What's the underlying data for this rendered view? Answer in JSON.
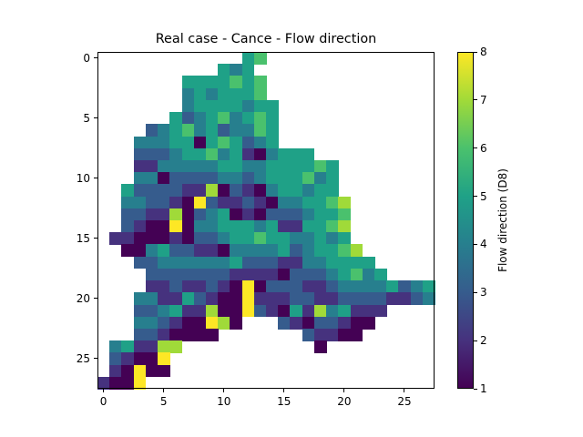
{
  "chart_data": {
    "type": "heatmap",
    "title": "Real case - Cance - Flow direction",
    "xlabel": "",
    "ylabel": "",
    "colorbar_label": "Flow direction (D8)",
    "colormap": "viridis",
    "vmin": 1,
    "vmax": 8,
    "xlim": [
      -0.5,
      27.5
    ],
    "ylim": [
      27.5,
      -0.5
    ],
    "x_ticks": [
      0,
      5,
      10,
      15,
      20,
      25
    ],
    "y_ticks": [
      0,
      5,
      10,
      15,
      20,
      25
    ],
    "colorbar_ticks": [
      1,
      2,
      3,
      4,
      5,
      6,
      7,
      8
    ],
    "grid": false,
    "rows": 28,
    "cols": 28,
    "cells_by_row": [
      {
        "row": 0,
        "start": 12,
        "values": [
          5,
          6
        ]
      },
      {
        "row": 1,
        "start": 10,
        "values": [
          5,
          4,
          5
        ]
      },
      {
        "row": 2,
        "start": 7,
        "values": [
          5,
          5,
          5,
          5,
          6,
          5,
          6
        ]
      },
      {
        "row": 3,
        "start": 7,
        "values": [
          4,
          5,
          4,
          5,
          5,
          5,
          6
        ]
      },
      {
        "row": 4,
        "start": 7,
        "values": [
          4,
          5,
          5,
          5,
          5,
          4,
          5,
          5
        ]
      },
      {
        "row": 5,
        "start": 6,
        "values": [
          5,
          3,
          4,
          5,
          6,
          4,
          5,
          6,
          5
        ]
      },
      {
        "row": 6,
        "start": 4,
        "values": [
          3,
          4,
          5,
          6,
          4,
          5,
          3,
          4,
          4,
          6,
          5
        ]
      },
      {
        "row": 7,
        "start": 3,
        "values": [
          4,
          4,
          4,
          5,
          5,
          1,
          5,
          6,
          5,
          3,
          4,
          5
        ]
      },
      {
        "row": 8,
        "start": 3,
        "values": [
          3,
          3,
          3,
          4,
          5,
          5,
          6,
          4,
          5,
          2,
          1,
          4,
          5,
          5,
          5
        ]
      },
      {
        "row": 9,
        "start": 3,
        "values": [
          2,
          2,
          4,
          4,
          4,
          4,
          4,
          5,
          5,
          4,
          4,
          5,
          5,
          5,
          5,
          6,
          5
        ]
      },
      {
        "row": 10,
        "start": 3,
        "values": [
          4,
          4,
          1,
          3,
          3,
          3,
          3,
          4,
          4,
          3,
          4,
          5,
          5,
          5,
          6,
          4,
          5
        ]
      },
      {
        "row": 11,
        "start": 2,
        "values": [
          5,
          3,
          3,
          3,
          3,
          2,
          2,
          7,
          1,
          3,
          2,
          1,
          4,
          5,
          5,
          4,
          5,
          5
        ]
      },
      {
        "row": 12,
        "start": 2,
        "values": [
          4,
          4,
          3,
          3,
          2,
          1,
          8,
          3,
          2,
          2,
          3,
          2,
          1,
          4,
          4,
          5,
          5,
          6,
          7
        ]
      },
      {
        "row": 13,
        "start": 2,
        "values": [
          3,
          3,
          2,
          2,
          7,
          1,
          3,
          4,
          5,
          1,
          2,
          1,
          3,
          3,
          3,
          4,
          5,
          5,
          6
        ]
      },
      {
        "row": 14,
        "start": 2,
        "values": [
          3,
          2,
          1,
          1,
          8,
          1,
          4,
          4,
          5,
          5,
          5,
          4,
          5,
          2,
          2,
          5,
          5,
          6,
          7
        ]
      },
      {
        "row": 15,
        "start": 1,
        "values": [
          2,
          2,
          1,
          1,
          1,
          2,
          1,
          3,
          3,
          4,
          5,
          5,
          6,
          5,
          5,
          4,
          4,
          5,
          4,
          5
        ]
      },
      {
        "row": 16,
        "start": 2,
        "values": [
          1,
          1,
          4,
          5,
          3,
          3,
          2,
          2,
          1,
          4,
          4,
          4,
          4,
          5,
          3,
          4,
          5,
          5,
          6,
          7
        ]
      },
      {
        "row": 17,
        "start": 3,
        "values": [
          3,
          3,
          4,
          4,
          4,
          4,
          4,
          4,
          5,
          3,
          3,
          3,
          2,
          2,
          4,
          4,
          5,
          5,
          5,
          5
        ]
      },
      {
        "row": 18,
        "start": 4,
        "values": [
          3,
          3,
          3,
          3,
          3,
          3,
          3,
          2,
          2,
          2,
          2,
          1,
          3,
          3,
          3,
          4,
          5,
          6,
          4,
          5
        ]
      },
      {
        "row": 19,
        "start": 4,
        "values": [
          2,
          2,
          3,
          2,
          2,
          3,
          2,
          1,
          8,
          1,
          3,
          3,
          3,
          2,
          2,
          3,
          4,
          4,
          4,
          4,
          5,
          3,
          4,
          5
        ]
      },
      {
        "row": 20,
        "start": 3,
        "values": [
          4,
          4,
          2,
          2,
          5,
          3,
          2,
          1,
          1,
          8,
          2,
          2,
          2,
          3,
          3,
          2,
          2,
          3,
          3,
          3,
          3,
          2,
          2,
          3,
          4
        ]
      },
      {
        "row": 21,
        "start": 3,
        "values": [
          3,
          3,
          4,
          5,
          2,
          2,
          7,
          1,
          1,
          8,
          3,
          2,
          1,
          5,
          2,
          7,
          4,
          5,
          2,
          2,
          2
        ]
      },
      {
        "row": 22,
        "start": 3,
        "values": [
          4,
          4,
          3,
          2,
          1,
          1,
          8,
          7,
          1,
          null,
          null,
          null,
          3,
          2,
          1,
          3,
          3,
          2,
          1,
          1
        ]
      },
      {
        "row": 23,
        "start": 3,
        "values": [
          3,
          3,
          2,
          1,
          1,
          1,
          1,
          null,
          null,
          null,
          null,
          null,
          null,
          null,
          3,
          2,
          2,
          1,
          1
        ]
      },
      {
        "row": 24,
        "start": 1,
        "values": [
          4,
          5,
          2,
          2,
          7,
          7,
          null,
          null,
          null,
          null,
          null,
          null,
          null,
          null,
          null,
          null,
          null,
          1
        ]
      },
      {
        "row": 25,
        "start": 1,
        "values": [
          3,
          2,
          1,
          1,
          8
        ]
      },
      {
        "row": 26,
        "start": 1,
        "values": [
          2,
          1,
          8,
          1,
          1
        ]
      },
      {
        "row": 27,
        "start": 0,
        "values": [
          2,
          1,
          1,
          8
        ]
      }
    ]
  },
  "colors": {
    "viridis_stops": [
      "#440154",
      "#46327e",
      "#365c8d",
      "#277f8e",
      "#1fa187",
      "#4ac16d",
      "#a0da39",
      "#fde725"
    ],
    "axis": "#000000",
    "background": "#ffffff"
  }
}
